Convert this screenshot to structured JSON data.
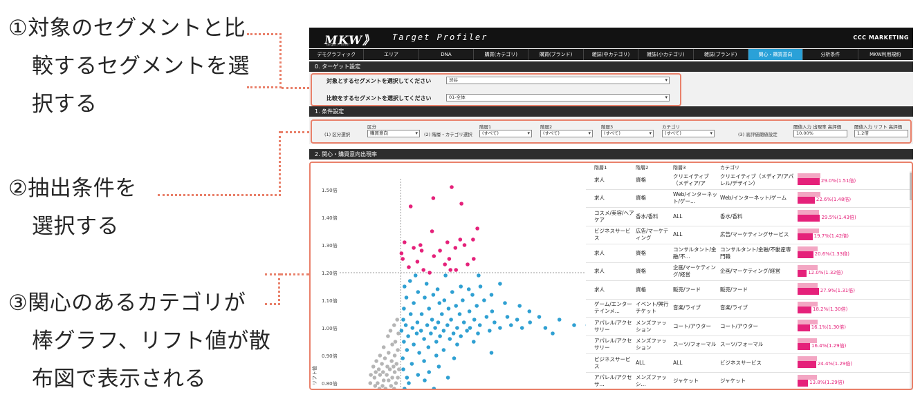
{
  "annotations": [
    {
      "lines": [
        "①対象のセグメントと比",
        "較するセグメントを選",
        "択する"
      ]
    },
    {
      "lines": [
        "②抽出条件を",
        "選択する"
      ]
    },
    {
      "lines": [
        "③関心のあるカテゴリが",
        "棒グラフ、リフト値が散",
        "布図で表示される"
      ]
    }
  ],
  "app": {
    "logo": "MKW》",
    "logo_sub": "Target Profiler",
    "title": "Target Profiler",
    "brand": "CCC MARKETING"
  },
  "tabs": [
    "デモグラフィック",
    "エリア",
    "DNA",
    "購買(カテゴリ)",
    "購買(ブランド)",
    "雑誌(中カテゴリ)",
    "雑誌(小カテゴリ)",
    "雑誌(ブランド)",
    "関心・購買意向",
    "分析条件",
    "MKW利用規約"
  ],
  "active_tab": 8,
  "section0": {
    "header": "0. ターゲット設定",
    "target_label": "対象とするセグメントを選択してください",
    "target_value": "渋谷",
    "compare_label": "比較をするセグメントを選択してください",
    "compare_value": "01-全体"
  },
  "section1": {
    "header": "1. 条件設定",
    "area_label": "(1) 区分選択",
    "area_col": "区分",
    "area_value": "購買意向",
    "hier_label": "(2) 階層・カテゴリ選択",
    "lvl1_col": "階層1",
    "lvl1_value": "(すべて)",
    "lvl2_col": "階層2",
    "lvl2_value": "(すべて)",
    "lvl3_col": "階層3",
    "lvl3_value": "(すべて)",
    "cat_col": "カテゴリ",
    "cat_value": "(すべて)",
    "thresh_label": "(3) 高評価閾値設定",
    "rate_col": "閾値入力 出現率 高評価",
    "rate_value": "10.00%",
    "lift_col": "閾値入力 リフト 高評価",
    "lift_value": "1.2倍"
  },
  "section2": {
    "header": "2. 関心・購買意向出現率"
  },
  "chart_data": {
    "type": "scatter",
    "ylabel": "リフト値",
    "yticks": [
      "1.50倍",
      "1.40倍",
      "1.30倍",
      "1.20倍",
      "1.10倍",
      "1.00倍",
      "0.90倍",
      "0.80倍"
    ],
    "ylim": [
      0.78,
      1.54
    ],
    "xlim": [
      0,
      0.4
    ],
    "reference_lines": {
      "lift": 1.2,
      "rate": 0.1
    },
    "series": [
      {
        "color": "#e5217a",
        "points": [
          [
            0.183,
            1.51
          ],
          [
            0.153,
            1.47
          ],
          [
            0.199,
            1.45
          ],
          [
            0.116,
            1.44
          ],
          [
            0.225,
            1.36
          ],
          [
            0.151,
            1.35
          ],
          [
            0.197,
            1.32
          ],
          [
            0.218,
            1.32
          ],
          [
            0.176,
            1.31
          ],
          [
            0.106,
            1.31
          ],
          [
            0.132,
            1.3
          ],
          [
            0.204,
            1.3
          ],
          [
            0.121,
            1.29
          ],
          [
            0.189,
            1.29
          ],
          [
            0.134,
            1.28
          ],
          [
            0.164,
            1.28
          ],
          [
            0.101,
            1.27
          ],
          [
            0.154,
            1.26
          ],
          [
            0.103,
            1.25
          ],
          [
            0.179,
            1.25
          ],
          [
            0.219,
            1.25
          ],
          [
            0.127,
            1.24
          ],
          [
            0.172,
            1.23
          ],
          [
            0.209,
            1.23
          ],
          [
            0.113,
            1.22
          ],
          [
            0.19,
            1.21
          ],
          [
            0.147,
            1.2
          ],
          [
            0.181,
            1.21
          ],
          [
            0.137,
            1.21
          ]
        ]
      },
      {
        "color": "#2fa0d2",
        "points": [
          [
            0.124,
            1.19
          ],
          [
            0.173,
            1.19
          ],
          [
            0.227,
            1.19
          ],
          [
            0.262,
            1.16
          ],
          [
            0.115,
            1.17
          ],
          [
            0.142,
            1.16
          ],
          [
            0.198,
            1.15
          ],
          [
            0.23,
            1.15
          ],
          [
            0.106,
            1.15
          ],
          [
            0.16,
            1.14
          ],
          [
            0.211,
            1.14
          ],
          [
            0.128,
            1.13
          ],
          [
            0.184,
            1.13
          ],
          [
            0.248,
            1.12
          ],
          [
            0.217,
            1.12
          ],
          [
            0.153,
            1.12
          ],
          [
            0.109,
            1.11
          ],
          [
            0.139,
            1.11
          ],
          [
            0.171,
            1.1
          ],
          [
            0.201,
            1.1
          ],
          [
            0.236,
            1.1
          ],
          [
            0.27,
            1.09
          ],
          [
            0.121,
            1.09
          ],
          [
            0.163,
            1.09
          ],
          [
            0.19,
            1.08
          ],
          [
            0.224,
            1.08
          ],
          [
            0.294,
            1.08
          ],
          [
            0.105,
            1.07
          ],
          [
            0.146,
            1.07
          ],
          [
            0.178,
            1.07
          ],
          [
            0.212,
            1.06
          ],
          [
            0.249,
            1.06
          ],
          [
            0.31,
            1.06
          ],
          [
            0.116,
            1.05
          ],
          [
            0.134,
            1.05
          ],
          [
            0.167,
            1.05
          ],
          [
            0.196,
            1.05
          ],
          [
            0.24,
            1.04
          ],
          [
            0.326,
            1.04
          ],
          [
            0.274,
            1.04
          ],
          [
            0.104,
            1.03
          ],
          [
            0.151,
            1.03
          ],
          [
            0.182,
            1.03
          ],
          [
            0.22,
            1.03
          ],
          [
            0.29,
            1.03
          ],
          [
            0.359,
            1.03
          ],
          [
            0.127,
            1.02
          ],
          [
            0.161,
            1.02
          ],
          [
            0.203,
            1.02
          ],
          [
            0.253,
            1.02
          ],
          [
            0.311,
            1.02
          ],
          [
            0.108,
            1.01
          ],
          [
            0.143,
            1.01
          ],
          [
            0.176,
            1.01
          ],
          [
            0.229,
            1.01
          ],
          [
            0.28,
            1.01
          ],
          [
            0.383,
            1.01
          ],
          [
            0.405,
            1.01
          ],
          [
            0.119,
            1.0
          ],
          [
            0.156,
            1.0
          ],
          [
            0.192,
            1.0
          ],
          [
            0.213,
            1.0
          ],
          [
            0.262,
            1.0
          ],
          [
            0.298,
            1.0
          ],
          [
            0.336,
            1.0
          ],
          [
            0.101,
            0.99
          ],
          [
            0.133,
            0.99
          ],
          [
            0.17,
            0.99
          ],
          [
            0.208,
            0.99
          ],
          [
            0.245,
            0.99
          ],
          [
            0.126,
            0.98
          ],
          [
            0.149,
            0.98
          ],
          [
            0.186,
            0.98
          ],
          [
            0.226,
            0.98
          ],
          [
            0.348,
            0.98
          ],
          [
            0.112,
            0.97
          ],
          [
            0.164,
            0.97
          ],
          [
            0.198,
            0.97
          ],
          [
            0.138,
            0.96
          ],
          [
            0.18,
            0.96
          ],
          [
            0.105,
            0.95
          ],
          [
            0.158,
            0.95
          ],
          [
            0.219,
            0.95
          ],
          [
            0.121,
            0.94
          ],
          [
            0.192,
            0.94
          ],
          [
            0.145,
            0.93
          ],
          [
            0.11,
            0.92
          ],
          [
            0.17,
            0.92
          ],
          [
            0.13,
            0.91
          ],
          [
            0.248,
            0.91
          ],
          [
            0.158,
            0.9
          ],
          [
            0.103,
            0.89
          ],
          [
            0.187,
            0.89
          ],
          [
            0.138,
            0.88
          ],
          [
            0.118,
            0.87
          ],
          [
            0.162,
            0.86
          ],
          [
            0.104,
            0.85
          ],
          [
            0.146,
            0.84
          ],
          [
            0.128,
            0.83
          ],
          [
            0.11,
            0.82
          ],
          [
            0.177,
            0.82
          ],
          [
            0.139,
            0.81
          ],
          [
            0.113,
            0.8
          ],
          [
            0.106,
            0.78
          ],
          [
            0.154,
            0.78
          ]
        ]
      },
      {
        "color": "#b5b5b5",
        "points": [
          [
            0.094,
            1.03
          ],
          [
            0.089,
            1.01
          ],
          [
            0.083,
            0.99
          ],
          [
            0.096,
            0.98
          ],
          [
            0.079,
            0.97
          ],
          [
            0.091,
            0.95
          ],
          [
            0.086,
            0.94
          ],
          [
            0.072,
            0.93
          ],
          [
            0.095,
            0.92
          ],
          [
            0.08,
            0.91
          ],
          [
            0.066,
            0.9
          ],
          [
            0.09,
            0.9
          ],
          [
            0.074,
            0.89
          ],
          [
            0.085,
            0.88
          ],
          [
            0.06,
            0.88
          ],
          [
            0.093,
            0.87
          ],
          [
            0.069,
            0.87
          ],
          [
            0.078,
            0.86
          ],
          [
            0.088,
            0.86
          ],
          [
            0.055,
            0.86
          ],
          [
            0.064,
            0.85
          ],
          [
            0.082,
            0.85
          ],
          [
            0.097,
            0.85
          ],
          [
            0.071,
            0.84
          ],
          [
            0.059,
            0.84
          ],
          [
            0.09,
            0.84
          ],
          [
            0.077,
            0.83
          ],
          [
            0.051,
            0.83
          ],
          [
            0.066,
            0.83
          ],
          [
            0.086,
            0.82
          ],
          [
            0.095,
            0.82
          ],
          [
            0.057,
            0.82
          ],
          [
            0.072,
            0.81
          ],
          [
            0.08,
            0.81
          ],
          [
            0.062,
            0.8
          ],
          [
            0.092,
            0.8
          ],
          [
            0.05,
            0.8
          ],
          [
            0.07,
            0.79
          ],
          [
            0.084,
            0.79
          ],
          [
            0.058,
            0.79
          ],
          [
            0.075,
            0.78
          ],
          [
            0.065,
            0.78
          ],
          [
            0.089,
            0.78
          ]
        ]
      }
    ]
  },
  "table": {
    "columns": [
      "階層1",
      "階層2",
      "階層3",
      "カテゴリ"
    ],
    "rows": [
      {
        "l1": "求人",
        "l2": "資格",
        "l3": "クリエイティブ（メディア/ア",
        "cat": "クリエイティブ（メディア/アパレル/デザイン）",
        "label": "29.0%(1.51倍)",
        "rate": 0.29,
        "lift": 1.51
      },
      {
        "l1": "求人",
        "l2": "資格",
        "l3": "Web/インターネット/ゲー...",
        "cat": "Web/インターネット/ゲーム",
        "label": "22.6%(1.48倍)",
        "rate": 0.226,
        "lift": 1.48
      },
      {
        "l1": "コスメ/美容/ヘアケア",
        "l2": "香水/香料",
        "l3": "ALL",
        "cat": "香水/香料",
        "label": "29.5%(1.43倍)",
        "rate": 0.295,
        "lift": 1.43
      },
      {
        "l1": "ビジネスサービス",
        "l2": "広告/マーケティング",
        "l3": "ALL",
        "cat": "広告/マーケティングサービス",
        "label": "19.7%(1.42倍)",
        "rate": 0.197,
        "lift": 1.42
      },
      {
        "l1": "求人",
        "l2": "資格",
        "l3": "コンサルタント/金融/不...",
        "cat": "コンサルタント/金融/不動産専門職",
        "label": "20.6%(1.33倍)",
        "rate": 0.206,
        "lift": 1.33
      },
      {
        "l1": "求人",
        "l2": "資格",
        "l3": "企画/マーケティング/経営",
        "cat": "企画/マーケティング/経営",
        "label": "12.0%(1.32倍)",
        "rate": 0.12,
        "lift": 1.32
      },
      {
        "l1": "求人",
        "l2": "資格",
        "l3": "販売/フード",
        "cat": "販売/フード",
        "label": "27.9%(1.31倍)",
        "rate": 0.279,
        "lift": 1.31
      },
      {
        "l1": "ゲーム/エンターテインメ...",
        "l2": "イベント/興行チケット",
        "l3": "音楽/ライブ",
        "cat": "音楽/ライブ",
        "label": "18.2%(1.30倍)",
        "rate": 0.182,
        "lift": 1.3
      },
      {
        "l1": "アパレル/アクセサリー",
        "l2": "メンズファッション",
        "l3": "コート/アウター",
        "cat": "コート/アウター",
        "label": "16.1%(1.30倍)",
        "rate": 0.161,
        "lift": 1.3
      },
      {
        "l1": "アパレル/アクセサリー",
        "l2": "メンズファッション",
        "l3": "スーツ/フォーマル",
        "cat": "スーツ/フォーマル",
        "label": "16.4%(1.29倍)",
        "rate": 0.164,
        "lift": 1.29
      },
      {
        "l1": "ビジネスサービス",
        "l2": "ALL",
        "l3": "ALL",
        "cat": "ビジネスサービス",
        "label": "24.4%(1.29倍)",
        "rate": 0.244,
        "lift": 1.29
      },
      {
        "l1": "アパレル/アクセサ...",
        "l2": "メンズファッシ...",
        "l3": "ジャケット",
        "cat": "ジャケット",
        "label": "13.8%(1.29倍)",
        "rate": 0.138,
        "lift": 1.29
      }
    ]
  },
  "colors": {
    "accent_tab": "#2aa1d8",
    "bar": "#e5217a",
    "bar_light": "#f3a6c3",
    "highlight_box": "#e9806a"
  }
}
